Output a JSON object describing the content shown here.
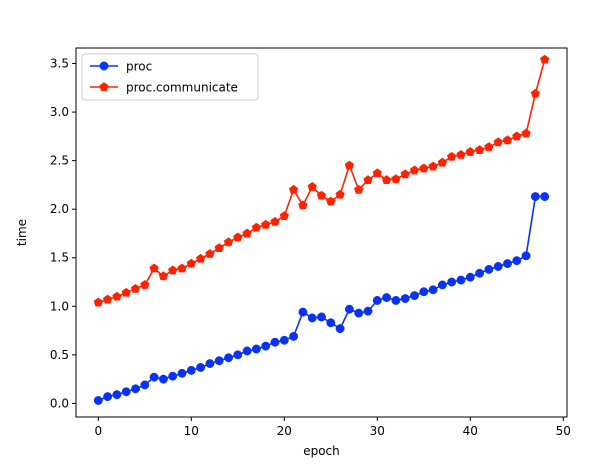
{
  "chart_data": {
    "type": "line",
    "title": "",
    "xlabel": "epoch",
    "ylabel": "time",
    "xlim": [
      -2.4,
      50.4
    ],
    "ylim": [
      -0.14,
      3.66
    ],
    "xticks": [
      0,
      10,
      20,
      30,
      40,
      50
    ],
    "xtick_labels": [
      "0",
      "10",
      "20",
      "30",
      "40",
      "50"
    ],
    "yticks": [
      0.0,
      0.5,
      1.0,
      1.5,
      2.0,
      2.5,
      3.0,
      3.5
    ],
    "ytick_labels": [
      "0.0",
      "0.5",
      "1.0",
      "1.5",
      "2.0",
      "2.5",
      "3.0",
      "3.5"
    ],
    "grid": false,
    "legend_position": "top-left",
    "x": [
      0,
      1,
      2,
      3,
      4,
      5,
      6,
      7,
      8,
      9,
      10,
      11,
      12,
      13,
      14,
      15,
      16,
      17,
      18,
      19,
      20,
      21,
      22,
      23,
      24,
      25,
      26,
      27,
      28,
      29,
      30,
      31,
      32,
      33,
      34,
      35,
      36,
      37,
      38,
      39,
      40,
      41,
      42,
      43,
      44,
      45,
      46,
      47,
      48
    ],
    "series": [
      {
        "name": "proc",
        "color": "#0a32f5",
        "marker": "circle",
        "values": [
          0.03,
          0.07,
          0.09,
          0.12,
          0.15,
          0.19,
          0.27,
          0.25,
          0.28,
          0.31,
          0.34,
          0.37,
          0.41,
          0.44,
          0.47,
          0.5,
          0.54,
          0.56,
          0.59,
          0.63,
          0.65,
          0.69,
          0.94,
          0.88,
          0.89,
          0.83,
          0.77,
          0.97,
          0.93,
          0.95,
          1.06,
          1.09,
          1.06,
          1.08,
          1.11,
          1.15,
          1.17,
          1.22,
          1.25,
          1.27,
          1.3,
          1.34,
          1.38,
          1.41,
          1.44,
          1.47,
          1.52,
          2.13,
          2.13
        ]
      },
      {
        "name": "proc.communicate",
        "color": "#ff2200",
        "marker": "pentagon",
        "values": [
          1.04,
          1.07,
          1.1,
          1.14,
          1.18,
          1.22,
          1.39,
          1.31,
          1.37,
          1.39,
          1.44,
          1.49,
          1.54,
          1.6,
          1.66,
          1.71,
          1.75,
          1.81,
          1.84,
          1.87,
          1.93,
          2.2,
          2.04,
          2.23,
          2.14,
          2.08,
          2.15,
          2.45,
          2.2,
          2.3,
          2.37,
          2.3,
          2.31,
          2.36,
          2.4,
          2.42,
          2.44,
          2.48,
          2.54,
          2.56,
          2.59,
          2.61,
          2.64,
          2.69,
          2.71,
          2.75,
          2.78,
          3.19,
          3.54
        ]
      }
    ]
  }
}
